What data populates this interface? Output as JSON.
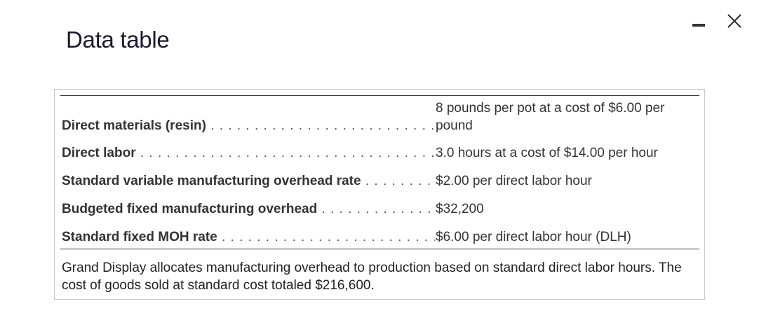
{
  "window": {
    "title": "Data table"
  },
  "rows": [
    {
      "label": "Direct materials (resin)",
      "value_line1": "8 pounds per pot at a cost of $6.00 per",
      "value_line2": "pound"
    },
    {
      "label": "Direct labor",
      "value": "3.0 hours at a cost of $14.00 per hour"
    },
    {
      "label": "Standard variable manufacturing overhead rate",
      "value": "$2.00 per direct labor hour"
    },
    {
      "label": "Budgeted fixed manufacturing overhead",
      "value": "$32,200"
    },
    {
      "label": "Standard fixed MOH rate",
      "value": "$6.00 per direct labor hour (DLH)"
    }
  ],
  "note": "Grand Display allocates manufacturing overhead to production based on standard direct labor hours. The cost of goods sold at standard cost totaled $216,600.",
  "icons": {
    "minimize": "minimize-icon",
    "close": "close-icon"
  }
}
